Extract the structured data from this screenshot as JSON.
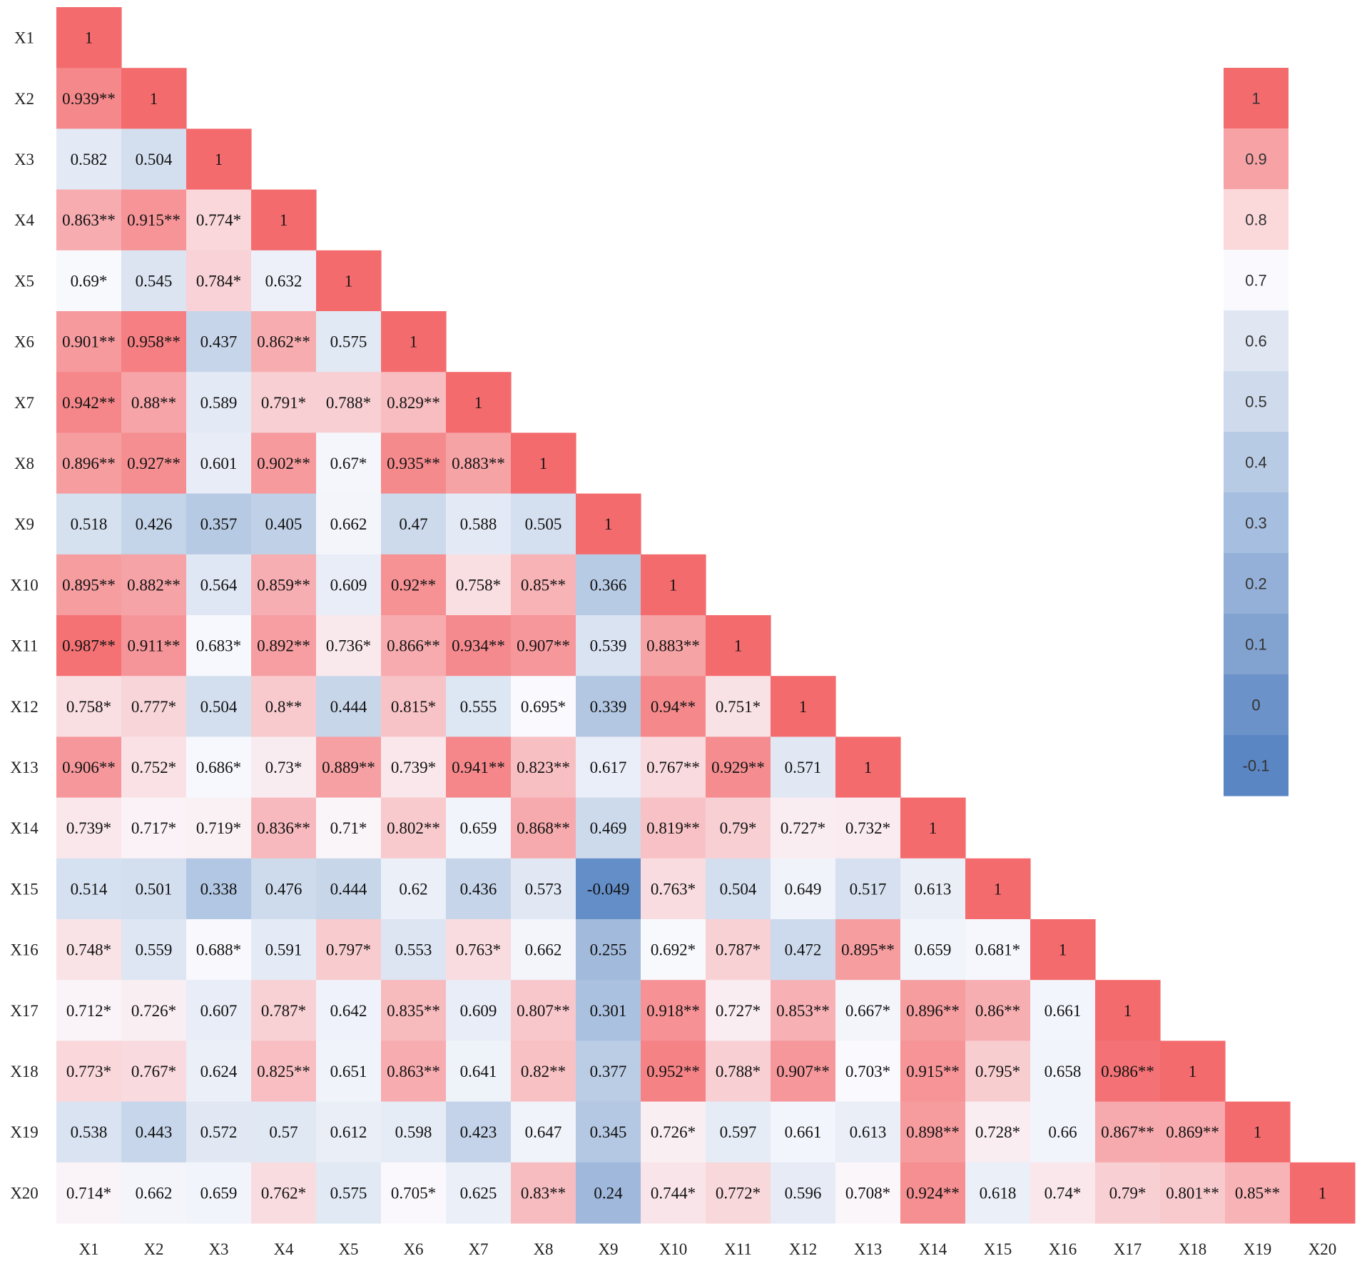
{
  "chart_data": {
    "type": "heatmap",
    "variables": [
      "X1",
      "X2",
      "X3",
      "X4",
      "X5",
      "X6",
      "X7",
      "X8",
      "X9",
      "X10",
      "X11",
      "X12",
      "X13",
      "X14",
      "X15",
      "X16",
      "X17",
      "X18",
      "X19",
      "X20"
    ],
    "matrix_lower_triangle": [
      [
        "1"
      ],
      [
        "0.939**",
        "1"
      ],
      [
        "0.582",
        "0.504",
        "1"
      ],
      [
        "0.863**",
        "0.915**",
        "0.774*",
        "1"
      ],
      [
        "0.69*",
        "0.545",
        "0.784*",
        "0.632",
        "1"
      ],
      [
        "0.901**",
        "0.958**",
        "0.437",
        "0.862**",
        "0.575",
        "1"
      ],
      [
        "0.942**",
        "0.88**",
        "0.589",
        "0.791*",
        "0.788*",
        "0.829**",
        "1"
      ],
      [
        "0.896**",
        "0.927**",
        "0.601",
        "0.902**",
        "0.67*",
        "0.935**",
        "0.883**",
        "1"
      ],
      [
        "0.518",
        "0.426",
        "0.357",
        "0.405",
        "0.662",
        "0.47",
        "0.588",
        "0.505",
        "1"
      ],
      [
        "0.895**",
        "0.882**",
        "0.564",
        "0.859**",
        "0.609",
        "0.92**",
        "0.758*",
        "0.85**",
        "0.366",
        "1"
      ],
      [
        "0.987**",
        "0.911**",
        "0.683*",
        "0.892**",
        "0.736*",
        "0.866**",
        "0.934**",
        "0.907**",
        "0.539",
        "0.883**",
        "1"
      ],
      [
        "0.758*",
        "0.777*",
        "0.504",
        "0.8**",
        "0.444",
        "0.815*",
        "0.555",
        "0.695*",
        "0.339",
        "0.94**",
        "0.751*",
        "1"
      ],
      [
        "0.906**",
        "0.752*",
        "0.686*",
        "0.73*",
        "0.889**",
        "0.739*",
        "0.941**",
        "0.823**",
        "0.617",
        "0.767**",
        "0.929**",
        "0.571",
        "1"
      ],
      [
        "0.739*",
        "0.717*",
        "0.719*",
        "0.836**",
        "0.71*",
        "0.802**",
        "0.659",
        "0.868**",
        "0.469",
        "0.819**",
        "0.79*",
        "0.727*",
        "0.732*",
        "1"
      ],
      [
        "0.514",
        "0.501",
        "0.338",
        "0.476",
        "0.444",
        "0.62",
        "0.436",
        "0.573",
        "-0.049",
        "0.763*",
        "0.504",
        "0.649",
        "0.517",
        "0.613",
        "1"
      ],
      [
        "0.748*",
        "0.559",
        "0.688*",
        "0.591",
        "0.797*",
        "0.553",
        "0.763*",
        "0.662",
        "0.255",
        "0.692*",
        "0.787*",
        "0.472",
        "0.895**",
        "0.659",
        "0.681*",
        "1"
      ],
      [
        "0.712*",
        "0.726*",
        "0.607",
        "0.787*",
        "0.642",
        "0.835**",
        "0.609",
        "0.807**",
        "0.301",
        "0.918**",
        "0.727*",
        "0.853**",
        "0.667*",
        "0.896**",
        "0.86**",
        "0.661",
        "1"
      ],
      [
        "0.773*",
        "0.767*",
        "0.624",
        "0.825**",
        "0.651",
        "0.863**",
        "0.641",
        "0.82**",
        "0.377",
        "0.952**",
        "0.788*",
        "0.907**",
        "0.703*",
        "0.915**",
        "0.795*",
        "0.658",
        "0.986**",
        "1"
      ],
      [
        "0.538",
        "0.443",
        "0.572",
        "0.57",
        "0.612",
        "0.598",
        "0.423",
        "0.647",
        "0.345",
        "0.726*",
        "0.597",
        "0.661",
        "0.613",
        "0.898**",
        "0.728*",
        "0.66",
        "0.867**",
        "0.869**",
        "1"
      ],
      [
        "0.714*",
        "0.662",
        "0.659",
        "0.762*",
        "0.575",
        "0.705*",
        "0.625",
        "0.83**",
        "0.24",
        "0.744*",
        "0.772*",
        "0.596",
        "0.708*",
        "0.924**",
        "0.618",
        "0.74*",
        "0.79*",
        "0.801**",
        "0.85**",
        "1"
      ]
    ],
    "colorbar": {
      "labels": [
        "1",
        "0.9",
        "0.8",
        "0.7",
        "0.6",
        "0.5",
        "0.4",
        "0.3",
        "0.2",
        "0.1",
        "0",
        "-0.1"
      ],
      "values": [
        1,
        0.9,
        0.8,
        0.7,
        0.6,
        0.5,
        0.4,
        0.3,
        0.2,
        0.1,
        0,
        -0.1
      ],
      "colors": [
        "#f46b6e",
        "#f7a3a6",
        "#fbd9db",
        "#fafafe",
        "#e0e7f2",
        "#cfdbec",
        "#b8cbe5",
        "#a6bedf",
        "#94b0d8",
        "#82a2d0",
        "#6b92c9",
        "#5a86c4"
      ]
    },
    "color_scale": {
      "stops": [
        {
          "value": -0.1,
          "color": "#5a86c4"
        },
        {
          "value": 0.4,
          "color": "#bfd0e7"
        },
        {
          "value": 0.7,
          "color": "#fafafe"
        },
        {
          "value": 1.0,
          "color": "#f46b6e"
        }
      ]
    }
  }
}
